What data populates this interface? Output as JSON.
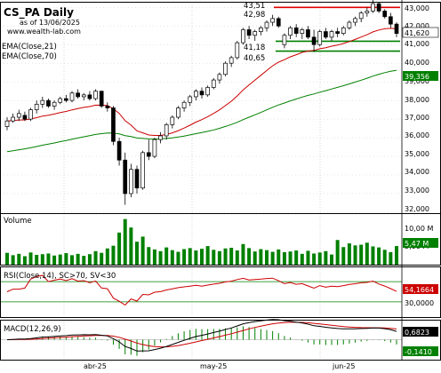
{
  "colors": {
    "up": "#ffffff",
    "down": "#000000",
    "ema21": "#cc0000",
    "ema70": "#008000",
    "hline_red": "#e00000",
    "hline_green": "#008000",
    "volume": "#008000",
    "rsi": "#cc0000",
    "macd": "#000000",
    "signal": "#cc0000",
    "hist": "#008000",
    "tag_ema21": "#cc0000",
    "tag_ema70": "#008000",
    "tag_volume": "#008000",
    "tag_rsi": "#cc0000",
    "tag_macd_main": "#000000",
    "tag_macd_hist": "#008000"
  },
  "header": {
    "title": "CS_PA Daily",
    "asof": "as of 13/06/2025",
    "site": "www.wealth-lab.com"
  },
  "legend": {
    "ema21": "EMA(Close,21)",
    "ema70": "EMA(Close,70)"
  },
  "level_labels": {
    "l1": "43,51",
    "l2": "42,98",
    "l3": "41,18",
    "l4": "40,65"
  },
  "price_axis": {
    "ticks": [
      "43,000",
      "42,000",
      "41,000",
      "40,000",
      "39,000",
      "38,000",
      "37,000",
      "36,000",
      "35,000",
      "34,000",
      "33,000",
      "32,000"
    ],
    "tag_last": "41,620",
    "tag_ema70": "39,356"
  },
  "volume_panel": {
    "title": "Volume",
    "ticks": [
      "10,00 M",
      "5,00 M"
    ],
    "tag": "5,47 M"
  },
  "rsi_panel": {
    "title": "RSI(Close,14), SC>70, SV<30",
    "ticks": [
      "30,0000"
    ],
    "tag": "54,1664"
  },
  "macd_panel": {
    "title": "MACD(12,26,9)",
    "tag_main": "0,6823",
    "tag_hist": "-0,1410"
  },
  "x_axis": {
    "labels": [
      "abr-25",
      "may-25",
      "jun-25"
    ]
  },
  "chart_data": {
    "type": "candlestick",
    "date_labels": [
      "abr-25",
      "may-25",
      "jun-25"
    ],
    "price_range": [
      32.0,
      43.2
    ],
    "horizontal_levels": [
      {
        "value": 43.0,
        "color": "red"
      },
      {
        "value": 41.18,
        "color": "green"
      },
      {
        "value": 40.65,
        "color": "green"
      }
    ],
    "ohlc": [
      [
        36.6,
        37.1,
        36.4,
        36.9
      ],
      [
        36.9,
        37.3,
        36.8,
        37.1
      ],
      [
        37.1,
        37.5,
        36.9,
        37.3
      ],
      [
        37.2,
        37.4,
        36.9,
        37.0
      ],
      [
        37.0,
        37.6,
        36.9,
        37.5
      ],
      [
        37.5,
        38.0,
        37.3,
        37.8
      ],
      [
        37.8,
        38.2,
        37.6,
        38.0
      ],
      [
        38.0,
        38.1,
        37.6,
        37.7
      ],
      [
        37.7,
        38.0,
        37.5,
        37.9
      ],
      [
        37.9,
        38.2,
        37.8,
        38.1
      ],
      [
        38.1,
        38.3,
        37.9,
        38.0
      ],
      [
        38.0,
        38.5,
        37.9,
        38.4
      ],
      [
        38.4,
        38.6,
        38.1,
        38.2
      ],
      [
        38.2,
        38.4,
        38.0,
        38.3
      ],
      [
        38.3,
        38.5,
        38.0,
        38.1
      ],
      [
        38.1,
        38.6,
        38.0,
        38.5
      ],
      [
        38.5,
        38.5,
        37.6,
        37.7
      ],
      [
        37.7,
        37.9,
        37.4,
        37.6
      ],
      [
        37.6,
        37.7,
        35.6,
        35.8
      ],
      [
        35.8,
        36.0,
        34.5,
        34.8
      ],
      [
        34.8,
        35.2,
        32.4,
        33.0
      ],
      [
        33.0,
        34.6,
        32.8,
        34.3
      ],
      [
        34.3,
        34.5,
        33.0,
        33.3
      ],
      [
        33.3,
        35.3,
        33.2,
        35.2
      ],
      [
        35.2,
        35.9,
        34.8,
        35.0
      ],
      [
        35.0,
        36.0,
        34.9,
        35.9
      ],
      [
        35.9,
        36.3,
        35.7,
        36.1
      ],
      [
        36.1,
        36.8,
        35.9,
        36.7
      ],
      [
        36.7,
        37.2,
        36.5,
        37.1
      ],
      [
        37.1,
        37.7,
        37.0,
        37.6
      ],
      [
        37.6,
        38.0,
        37.4,
        37.9
      ],
      [
        37.9,
        38.3,
        37.7,
        38.2
      ],
      [
        38.2,
        38.6,
        38.0,
        38.5
      ],
      [
        38.5,
        38.7,
        38.1,
        38.3
      ],
      [
        38.3,
        38.8,
        38.2,
        38.7
      ],
      [
        38.7,
        39.2,
        38.6,
        39.1
      ],
      [
        39.1,
        39.5,
        38.9,
        39.4
      ],
      [
        39.4,
        40.1,
        39.3,
        40.0
      ],
      [
        40.0,
        40.4,
        39.8,
        40.3
      ],
      [
        40.3,
        41.2,
        40.2,
        41.1
      ],
      [
        41.1,
        41.9,
        41.0,
        41.8
      ],
      [
        41.8,
        42.0,
        41.3,
        41.5
      ],
      [
        41.5,
        41.8,
        41.2,
        41.7
      ],
      [
        41.7,
        42.0,
        41.5,
        41.9
      ],
      [
        41.9,
        42.3,
        41.7,
        42.2
      ],
      [
        42.2,
        42.6,
        42.0,
        42.4
      ],
      [
        42.4,
        42.5,
        41.9,
        42.0
      ],
      [
        41.0,
        41.6,
        40.8,
        41.5
      ],
      [
        41.5,
        42.0,
        41.3,
        41.9
      ],
      [
        41.9,
        42.1,
        41.4,
        41.6
      ],
      [
        41.6,
        41.9,
        41.3,
        41.8
      ],
      [
        41.8,
        42.0,
        41.3,
        41.4
      ],
      [
        41.4,
        41.8,
        40.6,
        41.0
      ],
      [
        41.0,
        41.8,
        40.9,
        41.7
      ],
      [
        41.7,
        41.9,
        41.3,
        41.4
      ],
      [
        41.4,
        41.8,
        41.2,
        41.7
      ],
      [
        41.7,
        41.9,
        41.4,
        41.6
      ],
      [
        41.6,
        42.0,
        41.5,
        41.9
      ],
      [
        41.9,
        42.3,
        41.8,
        42.2
      ],
      [
        42.2,
        42.5,
        42.0,
        42.4
      ],
      [
        42.4,
        42.8,
        42.2,
        42.7
      ],
      [
        42.7,
        43.0,
        42.5,
        42.8
      ],
      [
        42.8,
        43.5,
        42.7,
        43.2
      ],
      [
        43.2,
        43.3,
        42.7,
        42.8
      ],
      [
        42.8,
        42.9,
        42.4,
        42.5
      ],
      [
        42.5,
        42.7,
        41.9,
        42.1
      ],
      [
        42.1,
        42.2,
        41.4,
        41.6
      ]
    ],
    "volume_millions": [
      3.5,
      2.8,
      3.2,
      2.5,
      3.6,
      2.9,
      3.1,
      3.3,
      2.7,
      3.0,
      3.4,
      2.8,
      3.2,
      2.6,
      3.1,
      4.0,
      3.5,
      4.8,
      5.6,
      9.5,
      13.5,
      11.0,
      6.8,
      8.3,
      5.2,
      4.5,
      4.0,
      5.1,
      4.3,
      3.8,
      4.6,
      4.9,
      4.2,
      4.7,
      5.5,
      4.4,
      4.0,
      4.8,
      5.0,
      4.2,
      6.1,
      4.9,
      3.9,
      4.6,
      4.3,
      3.8,
      4.5,
      3.7,
      3.9,
      4.2,
      3.2,
      4.1,
      3.3,
      3.6,
      4.0,
      3.0,
      7.3,
      5.2,
      6.3,
      5.7,
      5.9,
      6.5,
      5.4,
      5.1,
      4.4,
      3.7,
      5.5
    ],
    "rsi": {
      "oversold": 30,
      "last": 54.1664
    },
    "macd": {
      "last_macd": 0.6823,
      "last_hist": -0.141
    }
  }
}
